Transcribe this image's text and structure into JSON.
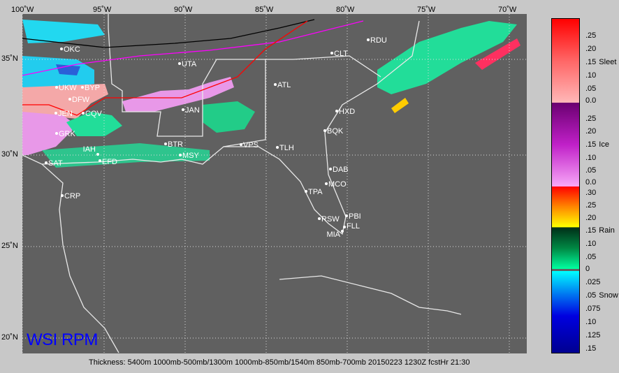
{
  "map": {
    "lon_labels": [
      "100˚W",
      "95˚W",
      "90˚W",
      "85˚W",
      "80˚W",
      "75˚W",
      "70˚W"
    ],
    "lat_labels": [
      "35˚N",
      "30˚N",
      "25˚N",
      "20˚N"
    ],
    "background_color": "#606060",
    "contours": [
      {
        "label": "5400",
        "color": "#000000"
      },
      {
        "label": "1540",
        "color": "#ff00ff"
      },
      {
        "label": "1300",
        "color": "#ff0000"
      }
    ],
    "stations": [
      "OKC",
      "UTA",
      "UKW",
      "BYP",
      "DFW",
      "JEN",
      "CQV",
      "GRK",
      "SAT",
      "IAH",
      "EFD",
      "CRP",
      "BTR",
      "MSY",
      "JAN",
      "ATL",
      "CLT",
      "RDU",
      "HXD",
      "BQK",
      "VPS",
      "TLH",
      "DAB",
      "MCO",
      "TPA",
      "RSW",
      "PBI",
      "FLL",
      "MIA"
    ],
    "branding": "WSI RPM"
  },
  "legend": {
    "sleet": {
      "name": "Sleet",
      "ticks": [
        ".25",
        ".20",
        ".15",
        ".10",
        ".05",
        "0.0"
      ]
    },
    "ice": {
      "name": "Ice",
      "ticks": [
        ".25",
        ".20",
        ".15",
        ".10",
        ".05",
        "0.0"
      ]
    },
    "rain": {
      "name": "Rain",
      "ticks": [
        ".30",
        ".25",
        ".20",
        ".15",
        ".10",
        ".05",
        "0"
      ]
    },
    "snow": {
      "name": "Snow",
      "ticks": [
        ".025",
        ".05",
        ".075",
        ".10",
        ".125",
        ".15"
      ]
    }
  },
  "caption": "Thickness: 5400m 1000mb-500mb/1300m 1000mb-850mb/1540m 850mb-700mb 20150223 1230Z fcstHr 21:30"
}
